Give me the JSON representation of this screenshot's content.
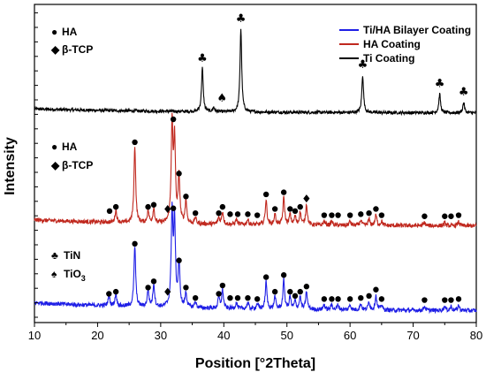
{
  "chart_data": {
    "type": "line",
    "title": "",
    "xlabel": "Position [°2Theta]",
    "ylabel": "Intensity",
    "xlim": [
      10,
      80
    ],
    "x_ticks": [
      10,
      20,
      30,
      40,
      50,
      60,
      70,
      80
    ],
    "y_ticks_shown": false,
    "grid": false,
    "legend_position": "top-right",
    "series": [
      {
        "name": "Ti/HA Bilayer Coating",
        "color": "#1f1fe6",
        "offset": 2.0,
        "noise": 0.02,
        "baseline": 0.08,
        "peaks": [
          [
            21.8,
            0.1
          ],
          [
            22.9,
            0.12
          ],
          [
            25.9,
            0.58
          ],
          [
            28.0,
            0.16
          ],
          [
            28.9,
            0.22
          ],
          [
            31.8,
            0.9
          ],
          [
            32.2,
            0.8
          ],
          [
            32.9,
            0.42
          ],
          [
            34.0,
            0.14
          ],
          [
            35.5,
            0.06
          ],
          [
            39.2,
            0.1
          ],
          [
            39.8,
            0.18
          ],
          [
            42.0,
            0.06
          ],
          [
            43.8,
            0.06
          ],
          [
            45.3,
            0.05
          ],
          [
            46.7,
            0.26
          ],
          [
            48.1,
            0.12
          ],
          [
            49.5,
            0.28
          ],
          [
            50.5,
            0.12
          ],
          [
            51.3,
            0.08
          ],
          [
            52.1,
            0.12
          ],
          [
            53.1,
            0.17
          ],
          [
            55.9,
            0.05
          ],
          [
            57.1,
            0.05
          ],
          [
            58.1,
            0.05
          ],
          [
            60.0,
            0.05
          ],
          [
            61.7,
            0.06
          ],
          [
            63.0,
            0.08
          ],
          [
            64.1,
            0.14
          ],
          [
            65.0,
            0.05
          ],
          [
            71.8,
            0.04
          ],
          [
            75.0,
            0.04
          ],
          [
            76.0,
            0.04
          ],
          [
            77.2,
            0.05
          ]
        ],
        "markers": [
          {
            "x": 21.8,
            "s": "circle",
            "dy": 0.14
          },
          {
            "x": 22.9,
            "s": "circle",
            "dy": 0.16
          },
          {
            "x": 25.9,
            "s": "circle",
            "dy": 0.62
          },
          {
            "x": 28.0,
            "s": "circle",
            "dy": 0.2
          },
          {
            "x": 28.9,
            "s": "circle",
            "dy": 0.26
          },
          {
            "x": 31.1,
            "s": "diamond",
            "dy": 0.16
          },
          {
            "x": 32.0,
            "s": "circle",
            "dy": 0.96
          },
          {
            "x": 32.9,
            "s": "circle",
            "dy": 0.46
          },
          {
            "x": 34.0,
            "s": "circle",
            "dy": 0.2
          },
          {
            "x": 35.5,
            "s": "circle",
            "dy": 0.1
          },
          {
            "x": 39.2,
            "s": "circle",
            "dy": 0.14
          },
          {
            "x": 39.8,
            "s": "circle",
            "dy": 0.22
          },
          {
            "x": 41.0,
            "s": "circle",
            "dy": 0.1
          },
          {
            "x": 42.2,
            "s": "circle",
            "dy": 0.1
          },
          {
            "x": 43.8,
            "s": "circle",
            "dy": 0.1
          },
          {
            "x": 45.3,
            "s": "circle",
            "dy": 0.09
          },
          {
            "x": 46.7,
            "s": "circle",
            "dy": 0.3
          },
          {
            "x": 48.1,
            "s": "circle",
            "dy": 0.16
          },
          {
            "x": 49.5,
            "s": "circle",
            "dy": 0.32
          },
          {
            "x": 50.5,
            "s": "circle",
            "dy": 0.16
          },
          {
            "x": 51.3,
            "s": "circle",
            "dy": 0.12
          },
          {
            "x": 52.1,
            "s": "circle",
            "dy": 0.16
          },
          {
            "x": 53.1,
            "s": "circle",
            "dy": 0.21
          },
          {
            "x": 55.9,
            "s": "circle",
            "dy": 0.09
          },
          {
            "x": 57.1,
            "s": "circle",
            "dy": 0.09
          },
          {
            "x": 58.1,
            "s": "circle",
            "dy": 0.09
          },
          {
            "x": 60.0,
            "s": "circle",
            "dy": 0.09
          },
          {
            "x": 61.7,
            "s": "circle",
            "dy": 0.1
          },
          {
            "x": 63.0,
            "s": "circle",
            "dy": 0.12
          },
          {
            "x": 64.1,
            "s": "circle",
            "dy": 0.18
          },
          {
            "x": 65.0,
            "s": "circle",
            "dy": 0.09
          },
          {
            "x": 71.8,
            "s": "circle",
            "dy": 0.08
          },
          {
            "x": 75.0,
            "s": "circle",
            "dy": 0.08
          },
          {
            "x": 76.0,
            "s": "circle",
            "dy": 0.08
          },
          {
            "x": 77.2,
            "s": "circle",
            "dy": 0.09
          }
        ]
      },
      {
        "name": "HA Coating",
        "color": "#c0281e",
        "offset": 1.0,
        "noise": 0.02,
        "baseline": 0.06,
        "peaks": [
          [
            22.9,
            0.12
          ],
          [
            25.9,
            0.74
          ],
          [
            28.0,
            0.12
          ],
          [
            28.9,
            0.14
          ],
          [
            31.8,
            0.95
          ],
          [
            32.2,
            0.78
          ],
          [
            32.9,
            0.44
          ],
          [
            34.0,
            0.22
          ],
          [
            35.5,
            0.06
          ],
          [
            39.2,
            0.06
          ],
          [
            39.8,
            0.12
          ],
          [
            42.0,
            0.05
          ],
          [
            43.8,
            0.05
          ],
          [
            46.7,
            0.24
          ],
          [
            48.1,
            0.1
          ],
          [
            49.5,
            0.26
          ],
          [
            50.5,
            0.1
          ],
          [
            51.3,
            0.08
          ],
          [
            52.1,
            0.12
          ],
          [
            53.1,
            0.2
          ],
          [
            55.9,
            0.04
          ],
          [
            57.1,
            0.04
          ],
          [
            60.0,
            0.04
          ],
          [
            61.7,
            0.05
          ],
          [
            63.0,
            0.06
          ],
          [
            64.1,
            0.1
          ],
          [
            65.0,
            0.04
          ],
          [
            71.8,
            0.03
          ],
          [
            75.0,
            0.03
          ],
          [
            77.2,
            0.04
          ]
        ],
        "markers": [
          {
            "x": 21.9,
            "s": "circle",
            "dy": 0.12
          },
          {
            "x": 22.9,
            "s": "circle",
            "dy": 0.16
          },
          {
            "x": 25.9,
            "s": "circle",
            "dy": 0.78
          },
          {
            "x": 28.0,
            "s": "circle",
            "dy": 0.16
          },
          {
            "x": 28.9,
            "s": "circle",
            "dy": 0.18
          },
          {
            "x": 31.1,
            "s": "diamond",
            "dy": 0.14
          },
          {
            "x": 32.0,
            "s": "circle",
            "dy": 1.0
          },
          {
            "x": 32.9,
            "s": "circle",
            "dy": 0.48
          },
          {
            "x": 34.0,
            "s": "circle",
            "dy": 0.26
          },
          {
            "x": 35.5,
            "s": "circle",
            "dy": 0.1
          },
          {
            "x": 39.2,
            "s": "circle",
            "dy": 0.1
          },
          {
            "x": 39.8,
            "s": "circle",
            "dy": 0.16
          },
          {
            "x": 41.0,
            "s": "circle",
            "dy": 0.09
          },
          {
            "x": 42.2,
            "s": "circle",
            "dy": 0.09
          },
          {
            "x": 43.8,
            "s": "circle",
            "dy": 0.09
          },
          {
            "x": 45.3,
            "s": "circle",
            "dy": 0.08
          },
          {
            "x": 46.7,
            "s": "circle",
            "dy": 0.28
          },
          {
            "x": 48.1,
            "s": "circle",
            "dy": 0.14
          },
          {
            "x": 49.5,
            "s": "circle",
            "dy": 0.3
          },
          {
            "x": 50.5,
            "s": "circle",
            "dy": 0.14
          },
          {
            "x": 51.3,
            "s": "circle",
            "dy": 0.12
          },
          {
            "x": 52.1,
            "s": "circle",
            "dy": 0.16
          },
          {
            "x": 53.1,
            "s": "diamond",
            "dy": 0.24
          },
          {
            "x": 55.9,
            "s": "circle",
            "dy": 0.08
          },
          {
            "x": 57.1,
            "s": "circle",
            "dy": 0.08
          },
          {
            "x": 58.1,
            "s": "circle",
            "dy": 0.08
          },
          {
            "x": 60.0,
            "s": "circle",
            "dy": 0.08
          },
          {
            "x": 61.7,
            "s": "circle",
            "dy": 0.09
          },
          {
            "x": 63.0,
            "s": "circle",
            "dy": 0.1
          },
          {
            "x": 64.1,
            "s": "circle",
            "dy": 0.14
          },
          {
            "x": 65.0,
            "s": "circle",
            "dy": 0.08
          },
          {
            "x": 71.8,
            "s": "circle",
            "dy": 0.07
          },
          {
            "x": 75.0,
            "s": "circle",
            "dy": 0.07
          },
          {
            "x": 76.0,
            "s": "circle",
            "dy": 0.07
          },
          {
            "x": 77.2,
            "s": "circle",
            "dy": 0.08
          }
        ]
      },
      {
        "name": "Ti Coating",
        "color": "#000000",
        "offset": 0.0,
        "noise": 0.015,
        "baseline": 0.04,
        "peaks": [
          [
            36.6,
            0.42
          ],
          [
            38.4,
            0.04
          ],
          [
            42.7,
            0.8
          ],
          [
            62.0,
            0.36
          ],
          [
            74.2,
            0.18
          ],
          [
            78.0,
            0.1
          ]
        ],
        "markers": [
          {
            "x": 36.6,
            "s": "club",
            "dy": 0.5
          },
          {
            "x": 39.7,
            "s": "spade",
            "dy": 0.12
          },
          {
            "x": 42.7,
            "s": "club",
            "dy": 0.88
          },
          {
            "x": 62.0,
            "s": "club",
            "dy": 0.44
          },
          {
            "x": 74.2,
            "s": "club",
            "dy": 0.26
          },
          {
            "x": 78.0,
            "s": "club",
            "dy": 0.18
          }
        ]
      }
    ]
  },
  "marker_keys": {
    "top": [
      {
        "symbol": "●",
        "label": "HA"
      },
      {
        "symbol": "◆",
        "label": "β-TCP"
      }
    ],
    "middle": [
      {
        "symbol": "●",
        "label": "HA"
      },
      {
        "symbol": "◆",
        "label": "β-TCP"
      }
    ],
    "bottom": [
      {
        "symbol": "♣",
        "label": "TiN"
      },
      {
        "symbol": "♠",
        "label": "TiO",
        "subscript": "3"
      }
    ]
  },
  "legend": [
    {
      "label": "Ti/HA Bilayer Coating",
      "color": "#1f1fe6"
    },
    {
      "label": "HA Coating",
      "color": "#c0281e"
    },
    {
      "label": "Ti Coating",
      "color": "#000000"
    }
  ]
}
